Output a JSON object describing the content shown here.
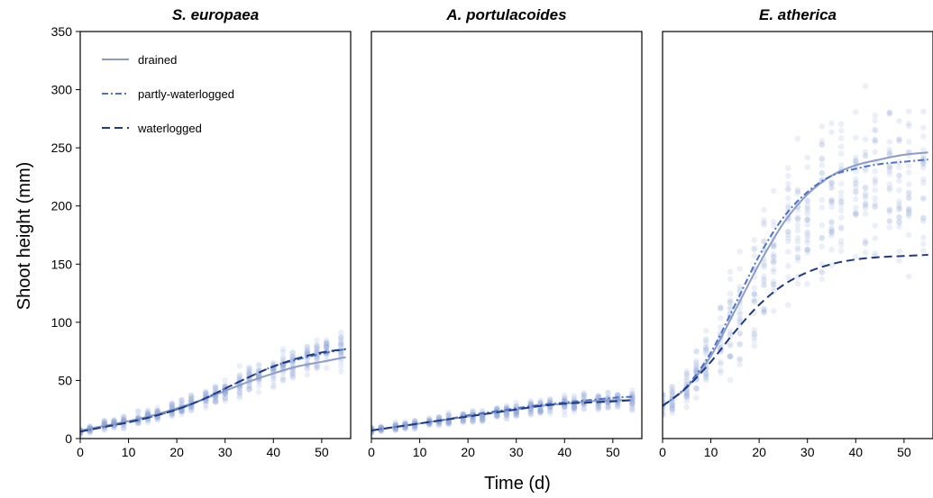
{
  "chart_data": {
    "type": "scatter",
    "ylabel": "Shoot height (mm)",
    "xlabel": "Time (d)",
    "ylim": [
      0,
      350
    ],
    "yticks": [
      0,
      50,
      100,
      150,
      200,
      250,
      300,
      350
    ],
    "xlim": [
      0,
      56
    ],
    "xticks": [
      0,
      10,
      20,
      30,
      40,
      50
    ],
    "legend": {
      "placement": "top-left",
      "entries": [
        {
          "label": "drained",
          "style": "solid",
          "color": "#8c9cc6"
        },
        {
          "label": "partly-waterlogged",
          "style": "dash-dot",
          "color": "#4a72c9"
        },
        {
          "label": "waterlogged",
          "style": "dashed",
          "color": "#1f3a82"
        }
      ]
    },
    "points_color": "#8ea4d6",
    "panels": [
      {
        "title": "S. europaea",
        "series": [
          {
            "name": "drained",
            "x": [
              0,
              5,
              10,
              15,
              20,
              25,
              30,
              35,
              40,
              45,
              50,
              55
            ],
            "y": [
              7,
              11,
              15,
              20,
              26,
              33,
              41,
              49,
              56,
              62,
              66,
              70
            ]
          },
          {
            "name": "partly-waterlogged",
            "x": [
              0,
              5,
              10,
              15,
              20,
              25,
              30,
              35,
              40,
              45,
              50,
              55
            ],
            "y": [
              6,
              10,
              14,
              19,
              25,
              33,
              43,
              53,
              62,
              68,
              73,
              77
            ]
          },
          {
            "name": "waterlogged",
            "x": [
              0,
              5,
              10,
              15,
              20,
              25,
              30,
              35,
              40,
              45,
              50,
              55
            ],
            "y": [
              6,
              10,
              14,
              19,
              25,
              33,
              43,
              53,
              62,
              69,
              74,
              77
            ]
          }
        ],
        "observations": {
          "x": [
            0,
            2,
            5,
            7,
            9,
            12,
            14,
            16,
            19,
            21,
            23,
            26,
            28,
            30,
            33,
            35,
            37,
            40,
            42,
            44,
            47,
            49,
            51,
            54
          ],
          "median": [
            6,
            8,
            11,
            13,
            15,
            17,
            19,
            21,
            24,
            27,
            30,
            35,
            38,
            42,
            47,
            52,
            56,
            60,
            63,
            66,
            70,
            72,
            75,
            77
          ],
          "spread": [
            4,
            5,
            6,
            6,
            7,
            8,
            8,
            9,
            10,
            11,
            12,
            13,
            14,
            15,
            16,
            17,
            18,
            18,
            19,
            19,
            20,
            20,
            21,
            22
          ]
        }
      },
      {
        "title": "A. portulacoides",
        "series": [
          {
            "name": "drained",
            "x": [
              0,
              5,
              10,
              15,
              20,
              25,
              30,
              35,
              40,
              45,
              50,
              54
            ],
            "y": [
              7,
              10,
              13,
              16,
              19,
              22,
              25,
              28,
              30,
              32,
              33,
              33
            ]
          },
          {
            "name": "partly-waterlogged",
            "x": [
              0,
              5,
              10,
              15,
              20,
              25,
              30,
              35,
              40,
              45,
              50,
              54
            ],
            "y": [
              7,
              10,
              13,
              16,
              20,
              23,
              26,
              29,
              31,
              33,
              35,
              36
            ]
          },
          {
            "name": "waterlogged",
            "x": [
              0,
              5,
              10,
              15,
              20,
              25,
              30,
              35,
              40,
              45,
              50,
              54
            ],
            "y": [
              7,
              10,
              13,
              16,
              19,
              22,
              25,
              28,
              30,
              31,
              32,
              33
            ]
          }
        ],
        "observations": {
          "x": [
            0,
            2,
            5,
            7,
            9,
            12,
            14,
            16,
            19,
            21,
            23,
            26,
            28,
            30,
            33,
            35,
            37,
            40,
            42,
            44,
            47,
            49,
            51,
            54
          ],
          "median": [
            7,
            8,
            10,
            11,
            12,
            14,
            15,
            16,
            18,
            19,
            20,
            22,
            23,
            24,
            26,
            27,
            28,
            29,
            30,
            31,
            32,
            32,
            33,
            33
          ],
          "spread": [
            4,
            4,
            5,
            5,
            6,
            6,
            6,
            7,
            7,
            7,
            8,
            8,
            8,
            9,
            9,
            9,
            10,
            10,
            10,
            11,
            11,
            11,
            12,
            12
          ]
        }
      },
      {
        "title": "E. atherica",
        "series": [
          {
            "name": "drained",
            "x": [
              0,
              5,
              10,
              15,
              20,
              25,
              30,
              35,
              40,
              45,
              50,
              55
            ],
            "y": [
              28,
              44,
              71,
              110,
              150,
              185,
              210,
              226,
              235,
              240,
              244,
              246
            ]
          },
          {
            "name": "partly-waterlogged",
            "x": [
              0,
              5,
              10,
              15,
              20,
              25,
              30,
              35,
              40,
              45,
              50,
              55
            ],
            "y": [
              28,
              45,
              74,
              115,
              157,
              190,
              212,
              226,
              232,
              236,
              238,
              240
            ]
          },
          {
            "name": "waterlogged",
            "x": [
              0,
              5,
              10,
              15,
              20,
              25,
              30,
              35,
              40,
              45,
              50,
              55
            ],
            "y": [
              28,
              44,
              66,
              92,
              115,
              132,
              143,
              150,
              154,
              156,
              157,
              158
            ]
          }
        ],
        "observations": {
          "x": [
            0,
            2,
            5,
            7,
            9,
            12,
            14,
            16,
            19,
            21,
            23,
            26,
            28,
            30,
            33,
            35,
            37,
            40,
            42,
            44,
            47,
            49,
            51,
            54
          ],
          "median": [
            28,
            35,
            45,
            56,
            67,
            82,
            96,
            110,
            130,
            145,
            158,
            172,
            182,
            190,
            200,
            206,
            210,
            214,
            217,
            219,
            221,
            222,
            223,
            224
          ],
          "spread": [
            12,
            18,
            25,
            35,
            45,
            55,
            62,
            70,
            80,
            88,
            92,
            95,
            98,
            100,
            100,
            100,
            100,
            100,
            100,
            100,
            100,
            100,
            100,
            100
          ]
        }
      }
    ]
  }
}
